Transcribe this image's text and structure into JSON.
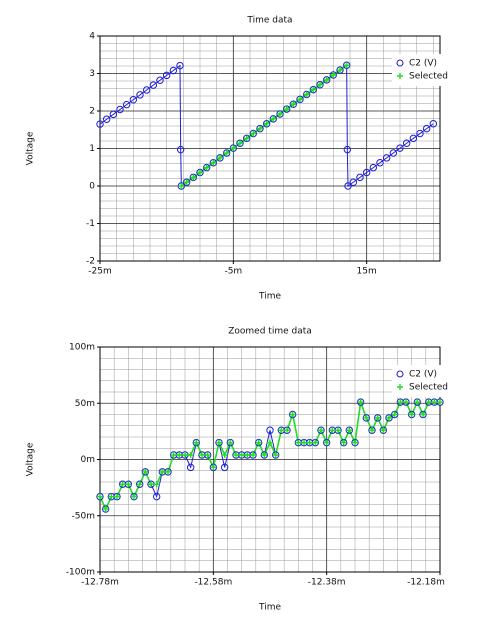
{
  "chart_data": [
    {
      "type": "line",
      "title": "Time data",
      "x_label": "Time",
      "y_label": "Voltage",
      "x": [
        -0.025,
        -0.024,
        -0.023,
        -0.022,
        -0.021,
        -0.02,
        -0.019,
        -0.018,
        -0.017,
        -0.016,
        -0.015,
        -0.014,
        -0.013,
        -0.0129,
        -0.0128,
        -0.012,
        -0.011,
        -0.01,
        -0.009,
        -0.008,
        -0.007,
        -0.006,
        -0.005,
        -0.004,
        -0.003,
        -0.002,
        -0.001,
        0,
        0.001,
        0.002,
        0.003,
        0.004,
        0.005,
        0.006,
        0.007,
        0.008,
        0.009,
        0.01,
        0.011,
        0.012,
        0.0121,
        0.0122,
        0.013,
        0.014,
        0.015,
        0.016,
        0.017,
        0.018,
        0.019,
        0.02,
        0.021,
        0.022,
        0.023,
        0.024,
        0.025
      ],
      "series": [
        {
          "name": "C2 (V)",
          "color": "#1f1fd6",
          "marker": "circle",
          "values": [
            1.65,
            1.78,
            1.91,
            2.04,
            2.17,
            2.3,
            2.43,
            2.56,
            2.69,
            2.82,
            2.95,
            3.08,
            3.21,
            0.97,
            0,
            0.1,
            0.23,
            0.36,
            0.49,
            0.62,
            0.75,
            0.88,
            1.01,
            1.14,
            1.27,
            1.4,
            1.53,
            1.66,
            1.79,
            1.92,
            2.05,
            2.18,
            2.31,
            2.44,
            2.57,
            2.7,
            2.83,
            2.96,
            3.09,
            3.22,
            0.97,
            0,
            0.1,
            0.23,
            0.36,
            0.49,
            0.62,
            0.75,
            0.88,
            1.01,
            1.14,
            1.27,
            1.4,
            1.53,
            1.66
          ]
        },
        {
          "name": "Selected",
          "color": "#22dd22",
          "marker": "plus",
          "values": [
            null,
            null,
            null,
            null,
            null,
            null,
            null,
            null,
            null,
            null,
            null,
            null,
            null,
            null,
            0,
            0.1,
            0.23,
            0.36,
            0.49,
            0.62,
            0.75,
            0.88,
            1.01,
            1.14,
            1.27,
            1.4,
            1.53,
            1.66,
            1.79,
            1.92,
            2.05,
            2.18,
            2.31,
            2.44,
            2.57,
            2.7,
            2.83,
            2.96,
            3.09,
            3.22,
            null,
            null,
            null,
            null,
            null,
            null,
            null,
            null,
            null,
            null,
            null,
            null,
            null,
            null,
            null
          ]
        }
      ],
      "xlim": [
        -0.025,
        0.026
      ],
      "xticks": [
        {
          "value": -0.025,
          "label": "-25m"
        },
        {
          "value": -0.005,
          "label": "-5m"
        },
        {
          "value": 0.015,
          "label": "15m"
        }
      ],
      "ylim": [
        -2,
        4
      ],
      "yticks": [
        -2,
        -1,
        0,
        1,
        2,
        3,
        4
      ],
      "grid": true,
      "legend": "upper right"
    },
    {
      "type": "line",
      "title": "Zoomed time data",
      "x_label": "Time",
      "y_label": "Voltage",
      "x": [
        -0.01278,
        -0.01277,
        -0.01276,
        -0.01275,
        -0.01274,
        -0.01273,
        -0.01272,
        -0.01271,
        -0.0127,
        -0.01269,
        -0.01268,
        -0.01267,
        -0.01266,
        -0.01265,
        -0.01264,
        -0.01263,
        -0.01262,
        -0.01261,
        -0.0126,
        -0.01259,
        -0.01258,
        -0.01257,
        -0.01256,
        -0.01255,
        -0.01254,
        -0.01253,
        -0.01252,
        -0.01251,
        -0.0125,
        -0.01249,
        -0.01248,
        -0.01247,
        -0.01246,
        -0.01245,
        -0.01244,
        -0.01243,
        -0.01242,
        -0.01241,
        -0.0124,
        -0.01239,
        -0.01238,
        -0.01237,
        -0.01236,
        -0.01235,
        -0.01234,
        -0.01233,
        -0.01232,
        -0.01231,
        -0.0123,
        -0.01229,
        -0.01228,
        -0.01227,
        -0.01226,
        -0.01225,
        -0.01224,
        -0.01223,
        -0.01222,
        -0.01221,
        -0.0122,
        -0.01219,
        -0.01218
      ],
      "series": [
        {
          "name": "C2 (V)",
          "color": "#1f1fd6",
          "marker": "circle",
          "values": [
            -0.033,
            -0.044,
            -0.033,
            -0.033,
            -0.022,
            -0.022,
            -0.033,
            -0.022,
            -0.011,
            -0.022,
            -0.033,
            -0.011,
            -0.011,
            0.004,
            0.004,
            0.004,
            -0.007,
            0.015,
            0.004,
            0.004,
            -0.007,
            0.015,
            -0.007,
            0.015,
            0.004,
            0.004,
            0.004,
            0.004,
            0.015,
            0.004,
            0.026,
            0.004,
            0.026,
            0.026,
            0.04,
            0.015,
            0.015,
            0.015,
            0.015,
            0.026,
            0.015,
            0.026,
            0.026,
            0.015,
            0.026,
            0.015,
            0.051,
            0.037,
            0.026,
            0.037,
            0.026,
            0.037,
            0.04,
            0.051,
            0.051,
            0.04,
            0.051,
            0.04,
            0.051,
            0.051,
            0.051
          ]
        },
        {
          "name": "Selected",
          "color": "#22dd22",
          "marker": "plus",
          "values": [
            -0.033,
            -0.044,
            -0.033,
            -0.033,
            -0.022,
            -0.022,
            -0.033,
            -0.022,
            -0.011,
            -0.022,
            -0.022,
            -0.011,
            -0.011,
            0.004,
            0.004,
            0.004,
            0.004,
            0.015,
            0.004,
            0.004,
            -0.007,
            0.015,
            0.004,
            0.015,
            0.004,
            0.004,
            0.004,
            0.004,
            0.015,
            0.004,
            0.015,
            0.004,
            0.026,
            0.026,
            0.04,
            0.015,
            0.015,
            0.015,
            0.015,
            0.026,
            0.015,
            0.026,
            0.026,
            0.015,
            0.026,
            0.015,
            0.051,
            0.037,
            0.026,
            0.037,
            0.026,
            0.037,
            0.04,
            0.051,
            0.051,
            0.04,
            0.051,
            0.04,
            0.051,
            0.051,
            0.051
          ]
        }
      ],
      "xlim": [
        -0.01278,
        -0.01218
      ],
      "xticks": [
        {
          "value": -0.01278,
          "label": "-12.78m"
        },
        {
          "value": -0.01258,
          "label": "-12.58m"
        },
        {
          "value": -0.01238,
          "label": "-12.38m"
        },
        {
          "value": -0.01218,
          "label": "-12.18m"
        }
      ],
      "ylim": [
        -0.1,
        0.1
      ],
      "yticks": [
        {
          "value": -0.1,
          "label": "-100m"
        },
        {
          "value": -0.05,
          "label": "-50m"
        },
        {
          "value": 0,
          "label": "0m"
        },
        {
          "value": 0.05,
          "label": "50m"
        },
        {
          "value": 0.1,
          "label": "100m"
        }
      ],
      "grid": true,
      "legend": "upper right"
    }
  ]
}
